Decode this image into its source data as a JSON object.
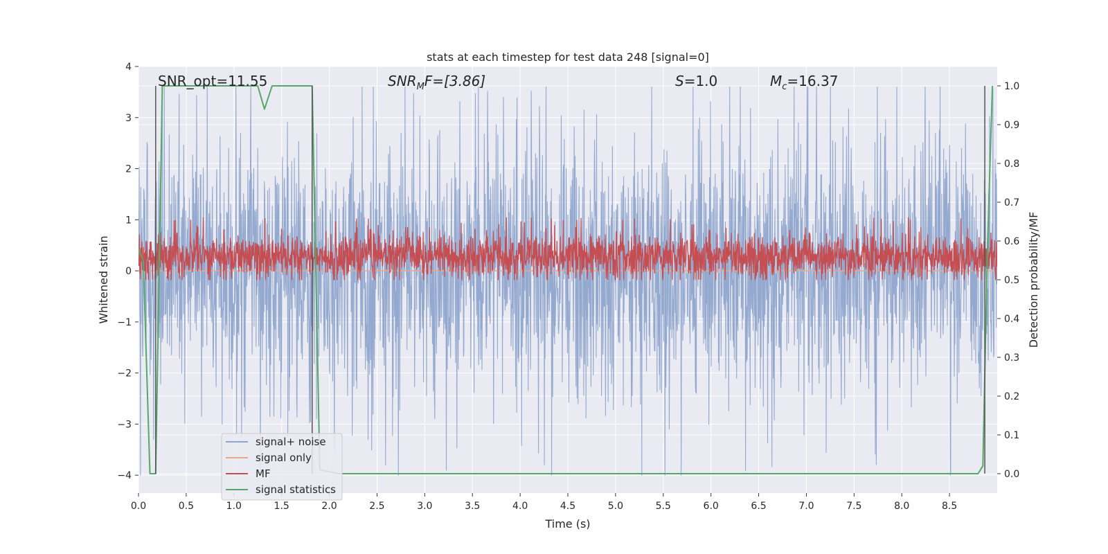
{
  "chart_data": {
    "type": "line",
    "title": "stats at each timestep for test data 248 [signal=0]",
    "xlabel": "Time (s)",
    "ylabel": "Whitened strain",
    "ylabel_right": "Detection probability/MF",
    "xlim": [
      0.0,
      9.0
    ],
    "ylim": [
      -4.35,
      4.0
    ],
    "ylim_right": [
      -0.05,
      1.05
    ],
    "x_ticks": [
      0.0,
      0.5,
      1.0,
      1.5,
      2.0,
      2.5,
      3.0,
      3.5,
      4.0,
      4.5,
      5.0,
      5.5,
      6.0,
      6.5,
      7.0,
      7.5,
      8.0,
      8.5
    ],
    "x_tick_labels": [
      "0.0",
      "0.5",
      "1.0",
      "1.5",
      "2.0",
      "2.5",
      "3.0",
      "3.5",
      "4.0",
      "4.5",
      "5.0",
      "5.5",
      "6.0",
      "6.5",
      "7.0",
      "7.5",
      "8.0",
      "8.5"
    ],
    "y_ticks": [
      4,
      3,
      2,
      1,
      0,
      -1,
      -2,
      -3,
      -4
    ],
    "y_tick_labels": [
      "4",
      "3",
      "2",
      "1",
      "0",
      "−1",
      "−2",
      "−3",
      "−4"
    ],
    "y2_ticks": [
      1.0,
      0.9,
      0.8,
      0.7,
      0.6,
      0.5,
      0.4,
      0.3,
      0.2,
      0.1,
      0.0
    ],
    "y2_tick_labels": [
      "1.0",
      "0.9",
      "0.8",
      "0.7",
      "0.6",
      "0.5",
      "0.4",
      "0.3",
      "0.2",
      "0.1",
      "0.0"
    ],
    "annotations": {
      "snr_opt": "SNR_opt=11.55",
      "snr_mf_base": "SNR",
      "snr_mf_sub": "M",
      "snr_mf_rest": "F=[3.86]",
      "s_var": "S",
      "s_rest": "=1.0",
      "mc_base": "M",
      "mc_sub": "c",
      "mc_rest": "=16.37"
    },
    "legend": {
      "location": "lower left",
      "entries": [
        "signal+ noise",
        "signal only",
        "MF",
        "signal statistics"
      ]
    },
    "colors": {
      "signal_noise": "#8fa5cc",
      "signal_only": "#e8a88c",
      "mf": "#c44e52",
      "signal_statistics": "#55a868",
      "vline": "#555555",
      "plot_bg": "#eaeaf2",
      "grid": "#ffffff"
    },
    "series": [
      {
        "name": "signal+ noise",
        "axis": "left",
        "kind": "noise",
        "x_range": [
          0.0,
          9.0
        ],
        "center": 0.0,
        "typical_range": [
          -2.1,
          2.1
        ],
        "max": 3.6,
        "min": -4.0
      },
      {
        "name": "signal only",
        "axis": "left",
        "x": [
          0.0,
          9.0
        ],
        "values": [
          0.0,
          0.0
        ]
      },
      {
        "name": "MF",
        "axis": "right",
        "kind": "noise",
        "x_range": [
          0.0,
          9.0
        ],
        "center": 0.56,
        "typical_range": [
          0.53,
          0.63
        ],
        "max": 0.66,
        "min": 0.5
      },
      {
        "name": "signal statistics",
        "axis": "right",
        "x": [
          0.0,
          0.05,
          0.12,
          0.18,
          0.25,
          0.35,
          0.6,
          1.25,
          1.32,
          1.4,
          1.5,
          1.82,
          1.9,
          2.1,
          2.2,
          8.5,
          8.8,
          8.85,
          8.9,
          8.95
        ],
        "values": [
          0.58,
          0.55,
          0.0,
          0.0,
          1.0,
          1.0,
          1.0,
          1.0,
          0.94,
          1.0,
          1.0,
          1.0,
          0.01,
          0.0,
          0.0,
          0.0,
          0.0,
          0.02,
          0.6,
          1.0
        ]
      }
    ],
    "vertical_lines_x": [
      0.18,
      1.82,
      8.87
    ]
  }
}
